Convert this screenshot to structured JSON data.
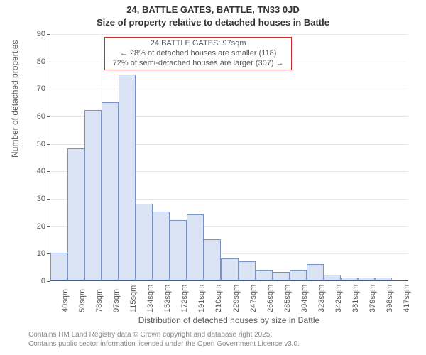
{
  "title": {
    "line1": "24, BATTLE GATES, BATTLE, TN33 0JD",
    "line2": "Size of property relative to detached houses in Battle"
  },
  "chart": {
    "type": "histogram",
    "background_color": "#ffffff",
    "grid_color": "#e8e8e8",
    "axis_color": "#595959",
    "bar_fill": "#dbe4f4",
    "bar_border": "#7a93c4",
    "refline_color": "#d02828",
    "ylabel": "Number of detached properties",
    "xlabel": "Distribution of detached houses by size in Battle",
    "ylim": [
      0,
      90
    ],
    "yticks": [
      0,
      10,
      20,
      30,
      40,
      50,
      60,
      70,
      80,
      90
    ],
    "xtick_labels": [
      "40sqm",
      "59sqm",
      "78sqm",
      "97sqm",
      "115sqm",
      "134sqm",
      "153sqm",
      "172sqm",
      "191sqm",
      "210sqm",
      "229sqm",
      "247sqm",
      "266sqm",
      "285sqm",
      "304sqm",
      "323sqm",
      "342sqm",
      "361sqm",
      "379sqm",
      "398sqm",
      "417sqm"
    ],
    "values": [
      10,
      48,
      62,
      65,
      75,
      28,
      25,
      22,
      24,
      15,
      8,
      7,
      4,
      3,
      4,
      6,
      2,
      1,
      1,
      1,
      0
    ],
    "ref_index": 3,
    "annotation": {
      "line1": "24 BATTLE GATES: 97sqm",
      "line2": "← 28% of detached houses are smaller (118)",
      "line3": "72% of semi-detached houses are larger (307) →"
    }
  },
  "credits": {
    "line1": "Contains HM Land Registry data © Crown copyright and database right 2025.",
    "line2": "Contains public sector information licensed under the Open Government Licence v3.0."
  },
  "fonts": {
    "title_size": 13,
    "axis_label_size": 12,
    "tick_size": 11,
    "anno_size": 11,
    "credits_size": 10
  }
}
